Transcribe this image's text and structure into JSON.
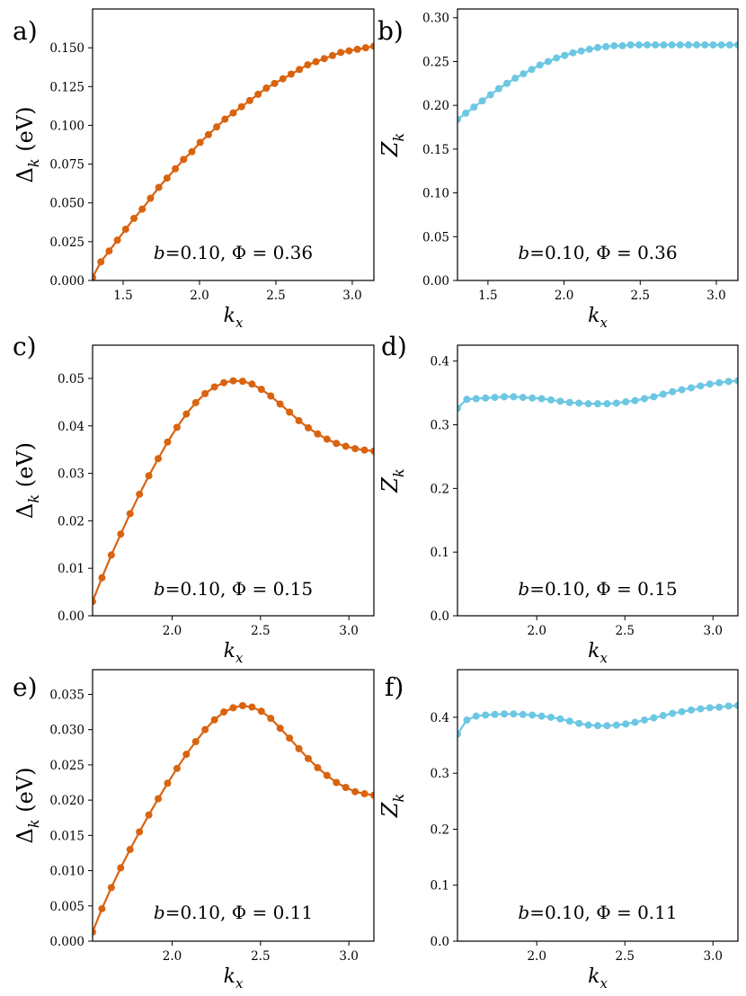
{
  "figure": {
    "background": "#ffffff"
  },
  "colors": {
    "delta": "#d9630f",
    "z": "#6cc7e3"
  },
  "chart_data": [
    {
      "id": "a",
      "panel_label": "a)",
      "type": "line",
      "quantity": "delta",
      "ylabel_symbol": "Δ",
      "ylabel_sub": "k",
      "ylabel_unit": "(eV)",
      "xlabel_symbol": "k",
      "xlabel_sub": "x",
      "xlim": [
        1.3,
        3.1416
      ],
      "ylim": [
        0.0,
        0.175
      ],
      "xticks": [
        1.5,
        2.0,
        2.5,
        3.0
      ],
      "xtick_labels": [
        "1.5",
        "2.0",
        "2.5",
        "3.0"
      ],
      "yticks": [
        0,
        0.025,
        0.05,
        0.075,
        0.1,
        0.125,
        0.15
      ],
      "ytick_labels": [
        "0.000",
        "0.025",
        "0.050",
        "0.075",
        "0.100",
        "0.125",
        "0.150"
      ],
      "annotation": {
        "b": "b",
        "b_value": "=0.10,",
        "phi": "Φ = 0.36"
      },
      "series": [
        {
          "name": "Δk",
          "x_start": 1.3,
          "x_end": 3.1416,
          "y": [
            0.002,
            0.012,
            0.019,
            0.026,
            0.033,
            0.04,
            0.046,
            0.053,
            0.06,
            0.066,
            0.072,
            0.078,
            0.083,
            0.089,
            0.094,
            0.099,
            0.104,
            0.108,
            0.112,
            0.116,
            0.12,
            0.124,
            0.127,
            0.13,
            0.133,
            0.136,
            0.139,
            0.141,
            0.143,
            0.145,
            0.147,
            0.148,
            0.149,
            0.15,
            0.151
          ]
        }
      ]
    },
    {
      "id": "b",
      "panel_label": "b)",
      "type": "line",
      "quantity": "z",
      "ylabel_symbol": "Z",
      "ylabel_sub": "k",
      "ylabel_unit": "",
      "xlabel_symbol": "k",
      "xlabel_sub": "x",
      "xlim": [
        1.3,
        3.1416
      ],
      "ylim": [
        0.0,
        0.31
      ],
      "xticks": [
        1.5,
        2.0,
        2.5,
        3.0
      ],
      "xtick_labels": [
        "1.5",
        "2.0",
        "2.5",
        "3.0"
      ],
      "yticks": [
        0,
        0.05,
        0.1,
        0.15,
        0.2,
        0.25,
        0.3
      ],
      "ytick_labels": [
        "0.00",
        "0.05",
        "0.10",
        "0.15",
        "0.20",
        "0.25",
        "0.30"
      ],
      "annotation": {
        "b": "b",
        "b_value": "=0.10,",
        "phi": "Φ = 0.36"
      },
      "series": [
        {
          "name": "Zk",
          "x_start": 1.3,
          "x_end": 3.1416,
          "y": [
            0.184,
            0.191,
            0.198,
            0.205,
            0.212,
            0.219,
            0.225,
            0.231,
            0.236,
            0.241,
            0.246,
            0.25,
            0.254,
            0.257,
            0.26,
            0.262,
            0.264,
            0.266,
            0.267,
            0.268,
            0.268,
            0.269,
            0.269,
            0.269,
            0.269,
            0.269,
            0.269,
            0.269,
            0.269,
            0.269,
            0.269,
            0.269,
            0.269,
            0.269,
            0.269
          ]
        }
      ]
    },
    {
      "id": "c",
      "panel_label": "c)",
      "type": "line",
      "quantity": "delta",
      "ylabel_symbol": "Δ",
      "ylabel_sub": "k",
      "ylabel_unit": "(eV)",
      "xlabel_symbol": "k",
      "xlabel_sub": "x",
      "xlim": [
        1.55,
        3.1416
      ],
      "ylim": [
        0.0,
        0.057
      ],
      "xticks": [
        2.0,
        2.5,
        3.0
      ],
      "xtick_labels": [
        "2.0",
        "2.5",
        "3.0"
      ],
      "yticks": [
        0,
        0.01,
        0.02,
        0.03,
        0.04,
        0.05
      ],
      "ytick_labels": [
        "0.00",
        "0.01",
        "0.02",
        "0.03",
        "0.04",
        "0.05"
      ],
      "annotation": {
        "b": "b",
        "b_value": "=0.10,",
        "phi": "Φ = 0.15"
      },
      "series": [
        {
          "name": "Δk",
          "x_start": 1.55,
          "x_end": 3.1416,
          "y": [
            0.003,
            0.008,
            0.0128,
            0.0172,
            0.0215,
            0.0256,
            0.0295,
            0.0331,
            0.0366,
            0.0397,
            0.0425,
            0.0449,
            0.0468,
            0.0482,
            0.0491,
            0.0495,
            0.0494,
            0.0488,
            0.0477,
            0.0463,
            0.0446,
            0.0429,
            0.0411,
            0.0396,
            0.0383,
            0.0372,
            0.0363,
            0.0357,
            0.0352,
            0.0349,
            0.0347
          ]
        }
      ]
    },
    {
      "id": "d",
      "panel_label": "d)",
      "type": "line",
      "quantity": "z",
      "ylabel_symbol": "Z",
      "ylabel_sub": "k",
      "ylabel_unit": "",
      "xlabel_symbol": "k",
      "xlabel_sub": "x",
      "xlim": [
        1.55,
        3.1416
      ],
      "ylim": [
        0.0,
        0.425
      ],
      "xticks": [
        2.0,
        2.5,
        3.0
      ],
      "xtick_labels": [
        "2.0",
        "2.5",
        "3.0"
      ],
      "yticks": [
        0,
        0.1,
        0.2,
        0.3,
        0.4
      ],
      "ytick_labels": [
        "0.0",
        "0.1",
        "0.2",
        "0.3",
        "0.4"
      ],
      "annotation": {
        "b": "b",
        "b_value": "=0.10,",
        "phi": "Φ = 0.15"
      },
      "series": [
        {
          "name": "Zk",
          "x_start": 1.55,
          "x_end": 3.1416,
          "y": [
            0.326,
            0.34,
            0.341,
            0.342,
            0.343,
            0.344,
            0.344,
            0.343,
            0.342,
            0.341,
            0.339,
            0.337,
            0.335,
            0.334,
            0.333,
            0.333,
            0.333,
            0.334,
            0.336,
            0.338,
            0.341,
            0.344,
            0.348,
            0.352,
            0.355,
            0.358,
            0.361,
            0.364,
            0.366,
            0.368,
            0.369
          ]
        }
      ]
    },
    {
      "id": "e",
      "panel_label": "e)",
      "type": "line",
      "quantity": "delta",
      "ylabel_symbol": "Δ",
      "ylabel_sub": "k",
      "ylabel_unit": "(eV)",
      "xlabel_symbol": "k",
      "xlabel_sub": "x",
      "xlim": [
        1.55,
        3.1416
      ],
      "ylim": [
        0.0,
        0.0385
      ],
      "xticks": [
        2.0,
        2.5,
        3.0
      ],
      "xtick_labels": [
        "2.0",
        "2.5",
        "3.0"
      ],
      "yticks": [
        0,
        0.005,
        0.01,
        0.015,
        0.02,
        0.025,
        0.03,
        0.035
      ],
      "ytick_labels": [
        "0.000",
        "0.005",
        "0.010",
        "0.015",
        "0.020",
        "0.025",
        "0.030",
        "0.035"
      ],
      "annotation": {
        "b": "b",
        "b_value": "=0.10,",
        "phi": "Φ = 0.11"
      },
      "series": [
        {
          "name": "Δk",
          "x_start": 1.55,
          "x_end": 3.1416,
          "y": [
            0.0013,
            0.0046,
            0.0076,
            0.0104,
            0.013,
            0.0155,
            0.0179,
            0.0202,
            0.0224,
            0.0245,
            0.0265,
            0.0283,
            0.03,
            0.0314,
            0.0325,
            0.0331,
            0.0334,
            0.0332,
            0.0326,
            0.0316,
            0.0302,
            0.0288,
            0.0273,
            0.0259,
            0.0246,
            0.0235,
            0.0225,
            0.0218,
            0.0212,
            0.0209,
            0.0207
          ]
        }
      ]
    },
    {
      "id": "f",
      "panel_label": "f)",
      "type": "line",
      "quantity": "z",
      "ylabel_symbol": "Z",
      "ylabel_sub": "k",
      "ylabel_unit": "",
      "xlabel_symbol": "k",
      "xlabel_sub": "x",
      "xlim": [
        1.55,
        3.1416
      ],
      "ylim": [
        0.0,
        0.485
      ],
      "xticks": [
        2.0,
        2.5,
        3.0
      ],
      "xtick_labels": [
        "2.0",
        "2.5",
        "3.0"
      ],
      "yticks": [
        0,
        0.1,
        0.2,
        0.3,
        0.4
      ],
      "ytick_labels": [
        "0.0",
        "0.1",
        "0.2",
        "0.3",
        "0.4"
      ],
      "annotation": {
        "b": "b",
        "b_value": "=0.10,",
        "phi": "Φ = 0.11"
      },
      "series": [
        {
          "name": "Zk",
          "x_start": 1.55,
          "x_end": 3.1416,
          "y": [
            0.37,
            0.395,
            0.402,
            0.404,
            0.405,
            0.406,
            0.406,
            0.405,
            0.404,
            0.402,
            0.4,
            0.397,
            0.393,
            0.389,
            0.386,
            0.385,
            0.385,
            0.386,
            0.388,
            0.391,
            0.395,
            0.399,
            0.403,
            0.407,
            0.41,
            0.413,
            0.415,
            0.417,
            0.418,
            0.42,
            0.421
          ]
        }
      ]
    }
  ]
}
